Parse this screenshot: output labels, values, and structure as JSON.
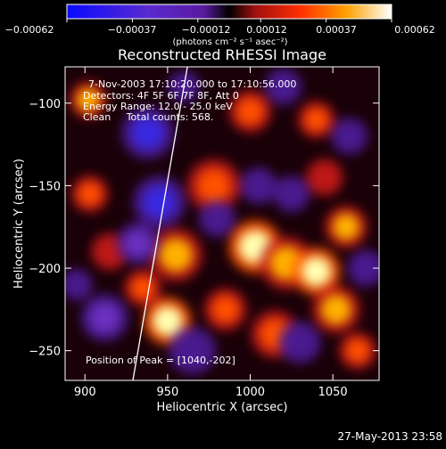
{
  "chart_data": {
    "type": "heatmap",
    "title": "Reconstructed RHESSI Image",
    "xlabel": "Heliocentric X (arcsec)",
    "ylabel": "Heliocentric Y (arcsec)",
    "xlim": [
      888,
      1078
    ],
    "ylim": [
      -268,
      -78
    ],
    "x_ticks": [
      900,
      950,
      1000,
      1050
    ],
    "y_ticks": [
      -100,
      -150,
      -200,
      -250
    ],
    "x_tick_labels": [
      "900",
      "950",
      "1000",
      "1050"
    ],
    "y_tick_labels": [
      "−100",
      "−150",
      "−200",
      "−250"
    ],
    "colorbar": {
      "range": [
        -0.00062,
        0.00062
      ],
      "ticks": [
        -0.00062,
        -0.00037,
        -0.00012,
        0.00012,
        0.00037,
        0.00062
      ],
      "tick_labels": [
        "−0.00062",
        "−0.00037",
        "−0.00012",
        "0.00012",
        "0.00037",
        "0.00062"
      ],
      "unit_label": "(photons cm⁻² s⁻¹ asec⁻²)"
    },
    "annotations": [
      "7-Nov-2003 17:10:20.000 to 17:10:56.000",
      "Detectors: 4F 5F 6F 7F 8F, Att 0",
      "Energy Range: 12.0 - 25.0 keV",
      "Clean     Total counts: 568."
    ],
    "peak_label": "Position of Peak = [1040,-202]",
    "peak": [
      1040,
      -202
    ],
    "limb_line": [
      [
        929,
        -268
      ],
      [
        962,
        -78
      ]
    ],
    "blobs": [
      {
        "x": 950,
        "y": -232,
        "v": 1.0,
        "s": 9
      },
      {
        "x": 955,
        "y": -192,
        "v": 0.8,
        "s": 10
      },
      {
        "x": 978,
        "y": -150,
        "v": 0.7,
        "s": 10
      },
      {
        "x": 1003,
        "y": -187,
        "v": 0.9,
        "s": 10
      },
      {
        "x": 1022,
        "y": -197,
        "v": 0.8,
        "s": 10
      },
      {
        "x": 1040,
        "y": -202,
        "v": 1.0,
        "s": 9
      },
      {
        "x": 1052,
        "y": -225,
        "v": 0.8,
        "s": 9
      },
      {
        "x": 1058,
        "y": -175,
        "v": 0.8,
        "s": 8
      },
      {
        "x": 1015,
        "y": -240,
        "v": 0.7,
        "s": 9
      },
      {
        "x": 1000,
        "y": -105,
        "v": 0.7,
        "s": 8
      },
      {
        "x": 1040,
        "y": -110,
        "v": 0.6,
        "s": 7
      },
      {
        "x": 902,
        "y": -98,
        "v": 0.8,
        "s": 7
      },
      {
        "x": 903,
        "y": -155,
        "v": 0.7,
        "s": 7
      },
      {
        "x": 915,
        "y": -190,
        "v": 0.5,
        "s": 7
      },
      {
        "x": 935,
        "y": -212,
        "v": 0.6,
        "s": 7
      },
      {
        "x": 985,
        "y": -225,
        "v": 0.7,
        "s": 8
      },
      {
        "x": 1065,
        "y": -250,
        "v": 0.7,
        "s": 7
      },
      {
        "x": 1045,
        "y": -145,
        "v": 0.5,
        "s": 7
      },
      {
        "x": 938,
        "y": -118,
        "v": -0.9,
        "s": 10
      },
      {
        "x": 945,
        "y": -160,
        "v": -0.9,
        "s": 10
      },
      {
        "x": 932,
        "y": -185,
        "v": -0.7,
        "s": 8
      },
      {
        "x": 912,
        "y": -230,
        "v": -0.7,
        "s": 9
      },
      {
        "x": 965,
        "y": -250,
        "v": -0.6,
        "s": 9
      },
      {
        "x": 980,
        "y": -170,
        "v": -0.6,
        "s": 7
      },
      {
        "x": 1005,
        "y": -150,
        "v": -0.5,
        "s": 7
      },
      {
        "x": 1025,
        "y": -155,
        "v": -0.5,
        "s": 7
      },
      {
        "x": 1030,
        "y": -245,
        "v": -0.6,
        "s": 8
      },
      {
        "x": 1070,
        "y": -200,
        "v": -0.5,
        "s": 7
      },
      {
        "x": 1060,
        "y": -120,
        "v": -0.5,
        "s": 7
      },
      {
        "x": 1020,
        "y": -90,
        "v": -0.4,
        "s": 7
      },
      {
        "x": 960,
        "y": -90,
        "v": -0.5,
        "s": 6
      },
      {
        "x": 895,
        "y": -210,
        "v": -0.4,
        "s": 6
      }
    ]
  },
  "footer": {
    "timestamp": "27-May-2013 23:58"
  },
  "colors": {
    "background": "#000000",
    "text": "#ffffff",
    "line": "#ffffff"
  }
}
